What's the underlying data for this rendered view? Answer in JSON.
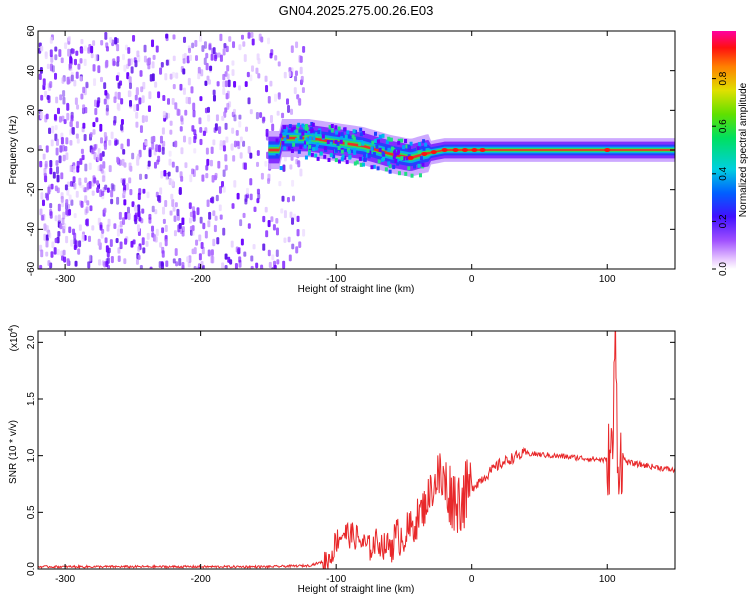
{
  "title": "GN04.2025.275.00.26.E03",
  "colors": {
    "snr_line": "#e8282a",
    "spectrogram_base": "#6a00ff"
  },
  "chart_data": [
    {
      "type": "heatmap",
      "name": "spectrogram",
      "xlabel": "Height of straight line (km)",
      "ylabel": "Frequency (Hz)",
      "xlim": [
        -320,
        150
      ],
      "ylim": [
        -60,
        60
      ],
      "xticks": [
        -300,
        -200,
        -100,
        0,
        100
      ],
      "xtick_labels": [
        "-300",
        "-200",
        "-100",
        "0",
        "100"
      ],
      "yticks": [
        -60,
        -40,
        -20,
        0,
        20,
        40,
        60
      ],
      "ytick_labels": [
        "-60",
        "-40",
        "-20",
        "0",
        "20",
        "40",
        "60"
      ],
      "colorbar": {
        "label": "Normalized spectral amplitude",
        "range": [
          0.0,
          1.0
        ],
        "ticks": [
          0.0,
          0.2,
          0.4,
          0.6,
          0.8
        ],
        "tick_labels": [
          "0.0",
          "0.2",
          "0.4",
          "0.6",
          "0.8"
        ]
      },
      "noise_region_km": [
        -320,
        -125
      ],
      "signal_band_center_hz": [
        [
          -140,
          6
        ],
        [
          -120,
          6
        ],
        [
          -100,
          4
        ],
        [
          -80,
          2
        ],
        [
          -60,
          -2
        ],
        [
          -45,
          -4
        ],
        [
          -35,
          -2
        ],
        [
          -20,
          0
        ],
        [
          0,
          0
        ],
        [
          50,
          0
        ],
        [
          100,
          0
        ],
        [
          150,
          0
        ]
      ],
      "signal_band_halfwidth_hz": 6
    },
    {
      "type": "line",
      "name": "snr",
      "xlabel": "Height of straight line (km)",
      "ylabel": "SNR (10 * v/v)",
      "scale_label": "(x10",
      "scale_exponent": "4",
      "scale_close": ")",
      "xlim": [
        -320,
        150
      ],
      "ylim": [
        0.0,
        2.1
      ],
      "xticks": [
        -300,
        -200,
        -100,
        0,
        100
      ],
      "xtick_labels": [
        "-300",
        "-200",
        "-100",
        "0",
        "100"
      ],
      "yticks": [
        0.0,
        0.5,
        1.0,
        1.5,
        2.0
      ],
      "ytick_labels": [
        "0.0",
        "0.5",
        "1.0",
        "1.5",
        "2.0"
      ],
      "series": [
        {
          "name": "SNR",
          "x": [
            -320,
            -250,
            -200,
            -150,
            -120,
            -105,
            -100,
            -95,
            -90,
            -85,
            -80,
            -75,
            -70,
            -65,
            -60,
            -55,
            -50,
            -45,
            -40,
            -35,
            -30,
            -25,
            -20,
            -15,
            -10,
            -5,
            0,
            10,
            20,
            30,
            40,
            50,
            60,
            70,
            80,
            90,
            100,
            104,
            106,
            108,
            110,
            115,
            120,
            130,
            140,
            150
          ],
          "y": [
            0.02,
            0.02,
            0.02,
            0.02,
            0.03,
            0.08,
            0.25,
            0.32,
            0.3,
            0.28,
            0.22,
            0.18,
            0.25,
            0.2,
            0.22,
            0.28,
            0.3,
            0.35,
            0.45,
            0.55,
            0.7,
            0.8,
            0.75,
            0.65,
            0.6,
            0.65,
            0.72,
            0.82,
            0.92,
            0.98,
            1.02,
            1.01,
            1.0,
            0.99,
            0.98,
            0.97,
            0.96,
            1.05,
            2.05,
            0.9,
            1.0,
            0.94,
            0.93,
            0.91,
            0.89,
            0.87
          ]
        }
      ]
    }
  ]
}
